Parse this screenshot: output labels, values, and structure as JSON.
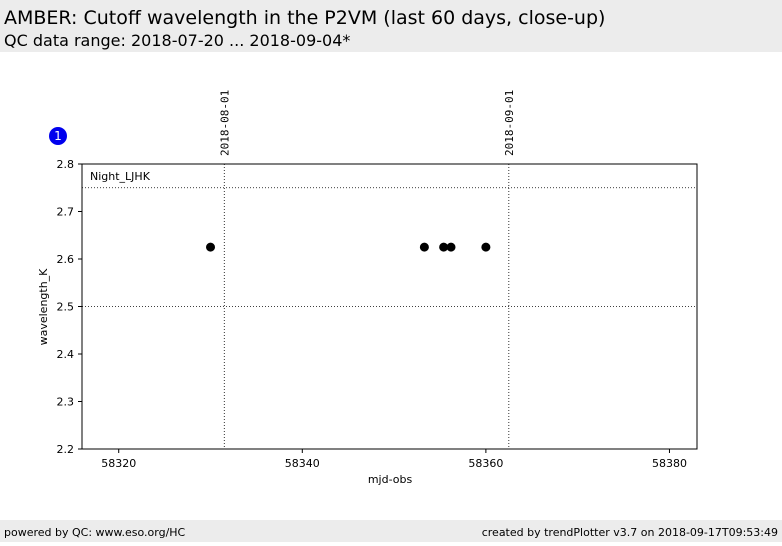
{
  "header": {
    "title": "AMBER: Cutoff wavelength in the P2VM (last 60 days, close-up)",
    "subtitle": "QC data range: 2018-07-20 ... 2018-09-04*"
  },
  "footer": {
    "left": "powered by QC: www.eso.org/HC",
    "right": "created by trendPlotter v3.7 on 2018-09-17T09:53:49"
  },
  "badge": "1",
  "chart_data": {
    "type": "scatter",
    "x_label": "mjd-obs",
    "y_label": "wavelength_K",
    "annotation": "Night_LJHK",
    "x": [
      58330,
      58353.3,
      58355.4,
      58356.2,
      58360
    ],
    "values": [
      2.625,
      2.625,
      2.625,
      2.625,
      2.625
    ],
    "color": "#000000",
    "xlim": [
      58316,
      58383
    ],
    "xticks": [
      58320,
      58340,
      58360,
      58380
    ],
    "ylim": [
      2.2,
      2.8
    ],
    "yticks": [
      2.2,
      2.3,
      2.4,
      2.5,
      2.6,
      2.7,
      2.8
    ],
    "date_lines": [
      {
        "value": 58331.5,
        "label": "2018-08-01"
      },
      {
        "value": 58362.5,
        "label": "2018-09-01"
      }
    ],
    "ref_lines": [
      2.75,
      2.5
    ]
  }
}
